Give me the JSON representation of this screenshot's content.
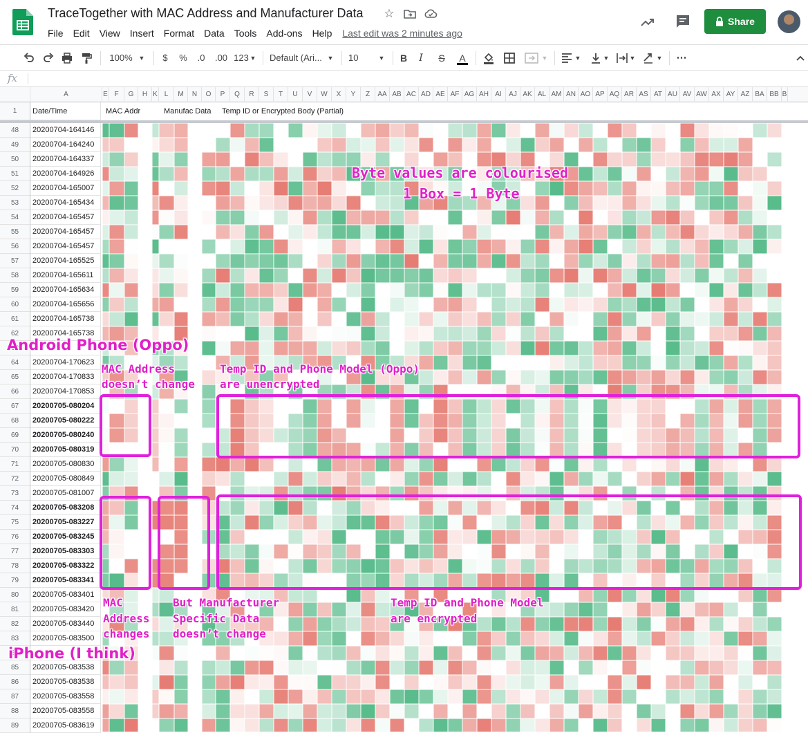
{
  "app": {
    "doc_title": "TraceTogether with MAC Address and Manufacturer Data",
    "menus": [
      "File",
      "Edit",
      "View",
      "Insert",
      "Format",
      "Data",
      "Tools",
      "Add-ons",
      "Help"
    ],
    "last_edit": "Last edit was 2 minutes ago",
    "share_label": "Share",
    "icons": [
      "star-icon",
      "move-to-folder-icon",
      "cloud-status-icon",
      "trend-icon",
      "comment-icon",
      "lock-icon"
    ],
    "accent_color": "#1e8e3e"
  },
  "toolbar": {
    "zoom": "100%",
    "currency": "$",
    "percent": "%",
    "dec_less": ".0",
    "dec_more": ".00",
    "number_format": "123",
    "font_family": "Default (Ari...",
    "font_size": "10",
    "bold": "B",
    "italic": "I",
    "strike": "S",
    "text_color": "A",
    "more": "⋯"
  },
  "formula_bar": {
    "fx": "fx",
    "value": ""
  },
  "columns": [
    "A",
    "E",
    "F",
    "G",
    "H",
    "K",
    "L",
    "M",
    "N",
    "O",
    "P",
    "Q",
    "R",
    "S",
    "T",
    "U",
    "V",
    "W",
    "X",
    "Y",
    "Z",
    "AA",
    "AB",
    "AC",
    "AD",
    "AE",
    "AF",
    "AG",
    "AH",
    "AI",
    "AJ",
    "AK",
    "AL",
    "AM",
    "AN",
    "AO",
    "AP",
    "AQ",
    "AR",
    "AS",
    "AT",
    "AU",
    "AV",
    "AW",
    "AX",
    "AY",
    "AZ",
    "BA",
    "BB",
    "B"
  ],
  "header_row": {
    "row": "1",
    "date_time": "Date/Time",
    "mac_addr": "MAC Addr",
    "manufac": "Manufac Data",
    "temp_id": "Temp ID or Encrypted Body (Partial)"
  },
  "rows": [
    {
      "n": "48",
      "t": "20200704-164146",
      "b": false
    },
    {
      "n": "49",
      "t": "20200704-164240",
      "b": false
    },
    {
      "n": "50",
      "t": "20200704-164337",
      "b": false
    },
    {
      "n": "51",
      "t": "20200704-164926",
      "b": false
    },
    {
      "n": "52",
      "t": "20200704-165007",
      "b": false
    },
    {
      "n": "53",
      "t": "20200704-165434",
      "b": false
    },
    {
      "n": "54",
      "t": "20200704-165457",
      "b": false
    },
    {
      "n": "55",
      "t": "20200704-165457",
      "b": false
    },
    {
      "n": "56",
      "t": "20200704-165457",
      "b": false
    },
    {
      "n": "57",
      "t": "20200704-165525",
      "b": false
    },
    {
      "n": "58",
      "t": "20200704-165611",
      "b": false
    },
    {
      "n": "59",
      "t": "20200704-165634",
      "b": false
    },
    {
      "n": "60",
      "t": "20200704-165656",
      "b": false
    },
    {
      "n": "61",
      "t": "20200704-165738",
      "b": false
    },
    {
      "n": "62",
      "t": "20200704-165738",
      "b": false
    },
    {
      "n": "63",
      "t": "",
      "b": false
    },
    {
      "n": "64",
      "t": "20200704-170623",
      "b": false
    },
    {
      "n": "65",
      "t": "20200704-170833",
      "b": false
    },
    {
      "n": "66",
      "t": "20200704-170853",
      "b": false
    },
    {
      "n": "67",
      "t": "20200705-080204",
      "b": true
    },
    {
      "n": "68",
      "t": "20200705-080222",
      "b": true
    },
    {
      "n": "69",
      "t": "20200705-080240",
      "b": true
    },
    {
      "n": "70",
      "t": "20200705-080319",
      "b": true
    },
    {
      "n": "71",
      "t": "20200705-080830",
      "b": false
    },
    {
      "n": "72",
      "t": "20200705-080849",
      "b": false
    },
    {
      "n": "73",
      "t": "20200705-081007",
      "b": false
    },
    {
      "n": "74",
      "t": "20200705-083208",
      "b": true
    },
    {
      "n": "75",
      "t": "20200705-083227",
      "b": true
    },
    {
      "n": "76",
      "t": "20200705-083245",
      "b": true
    },
    {
      "n": "77",
      "t": "20200705-083303",
      "b": true
    },
    {
      "n": "78",
      "t": "20200705-083322",
      "b": true
    },
    {
      "n": "79",
      "t": "20200705-083341",
      "b": true
    },
    {
      "n": "80",
      "t": "20200705-083401",
      "b": false
    },
    {
      "n": "81",
      "t": "20200705-083420",
      "b": false
    },
    {
      "n": "82",
      "t": "20200705-083440",
      "b": false
    },
    {
      "n": "83",
      "t": "20200705-083500",
      "b": false
    },
    {
      "n": "84",
      "t": "",
      "b": false
    },
    {
      "n": "85",
      "t": "20200705-083538",
      "b": false
    },
    {
      "n": "86",
      "t": "20200705-083538",
      "b": false
    },
    {
      "n": "87",
      "t": "20200705-083558",
      "b": false
    },
    {
      "n": "88",
      "t": "20200705-083558",
      "b": false
    },
    {
      "n": "89",
      "t": "20200705-083619",
      "b": false
    }
  ],
  "annotations": {
    "colourised_1": "Byte values are colourised",
    "colourised_2": "1 Box = 1 Byte",
    "android": "Android Phone (Oppo)",
    "mac_same_1": "MAC Address",
    "mac_same_2": "doesn’t change",
    "unenc_1": "Temp ID and Phone Model (Oppo)",
    "unenc_2": "are unencrypted",
    "mac_changes_1": "MAC",
    "mac_changes_2": "Address",
    "mac_changes_3": "changes",
    "manuf_1": "But Manufacturer",
    "manuf_2": "Specific Data",
    "manuf_3": "doesn’t change",
    "enc_1": "Temp ID and Phone Model",
    "enc_2": "are encrypted",
    "iphone": "iPhone (I think)"
  },
  "colors": {
    "annotation": "#e020c8",
    "heat_high": "#e67c73",
    "heat_mid": "#ffffff",
    "heat_low": "#57bb8a"
  }
}
